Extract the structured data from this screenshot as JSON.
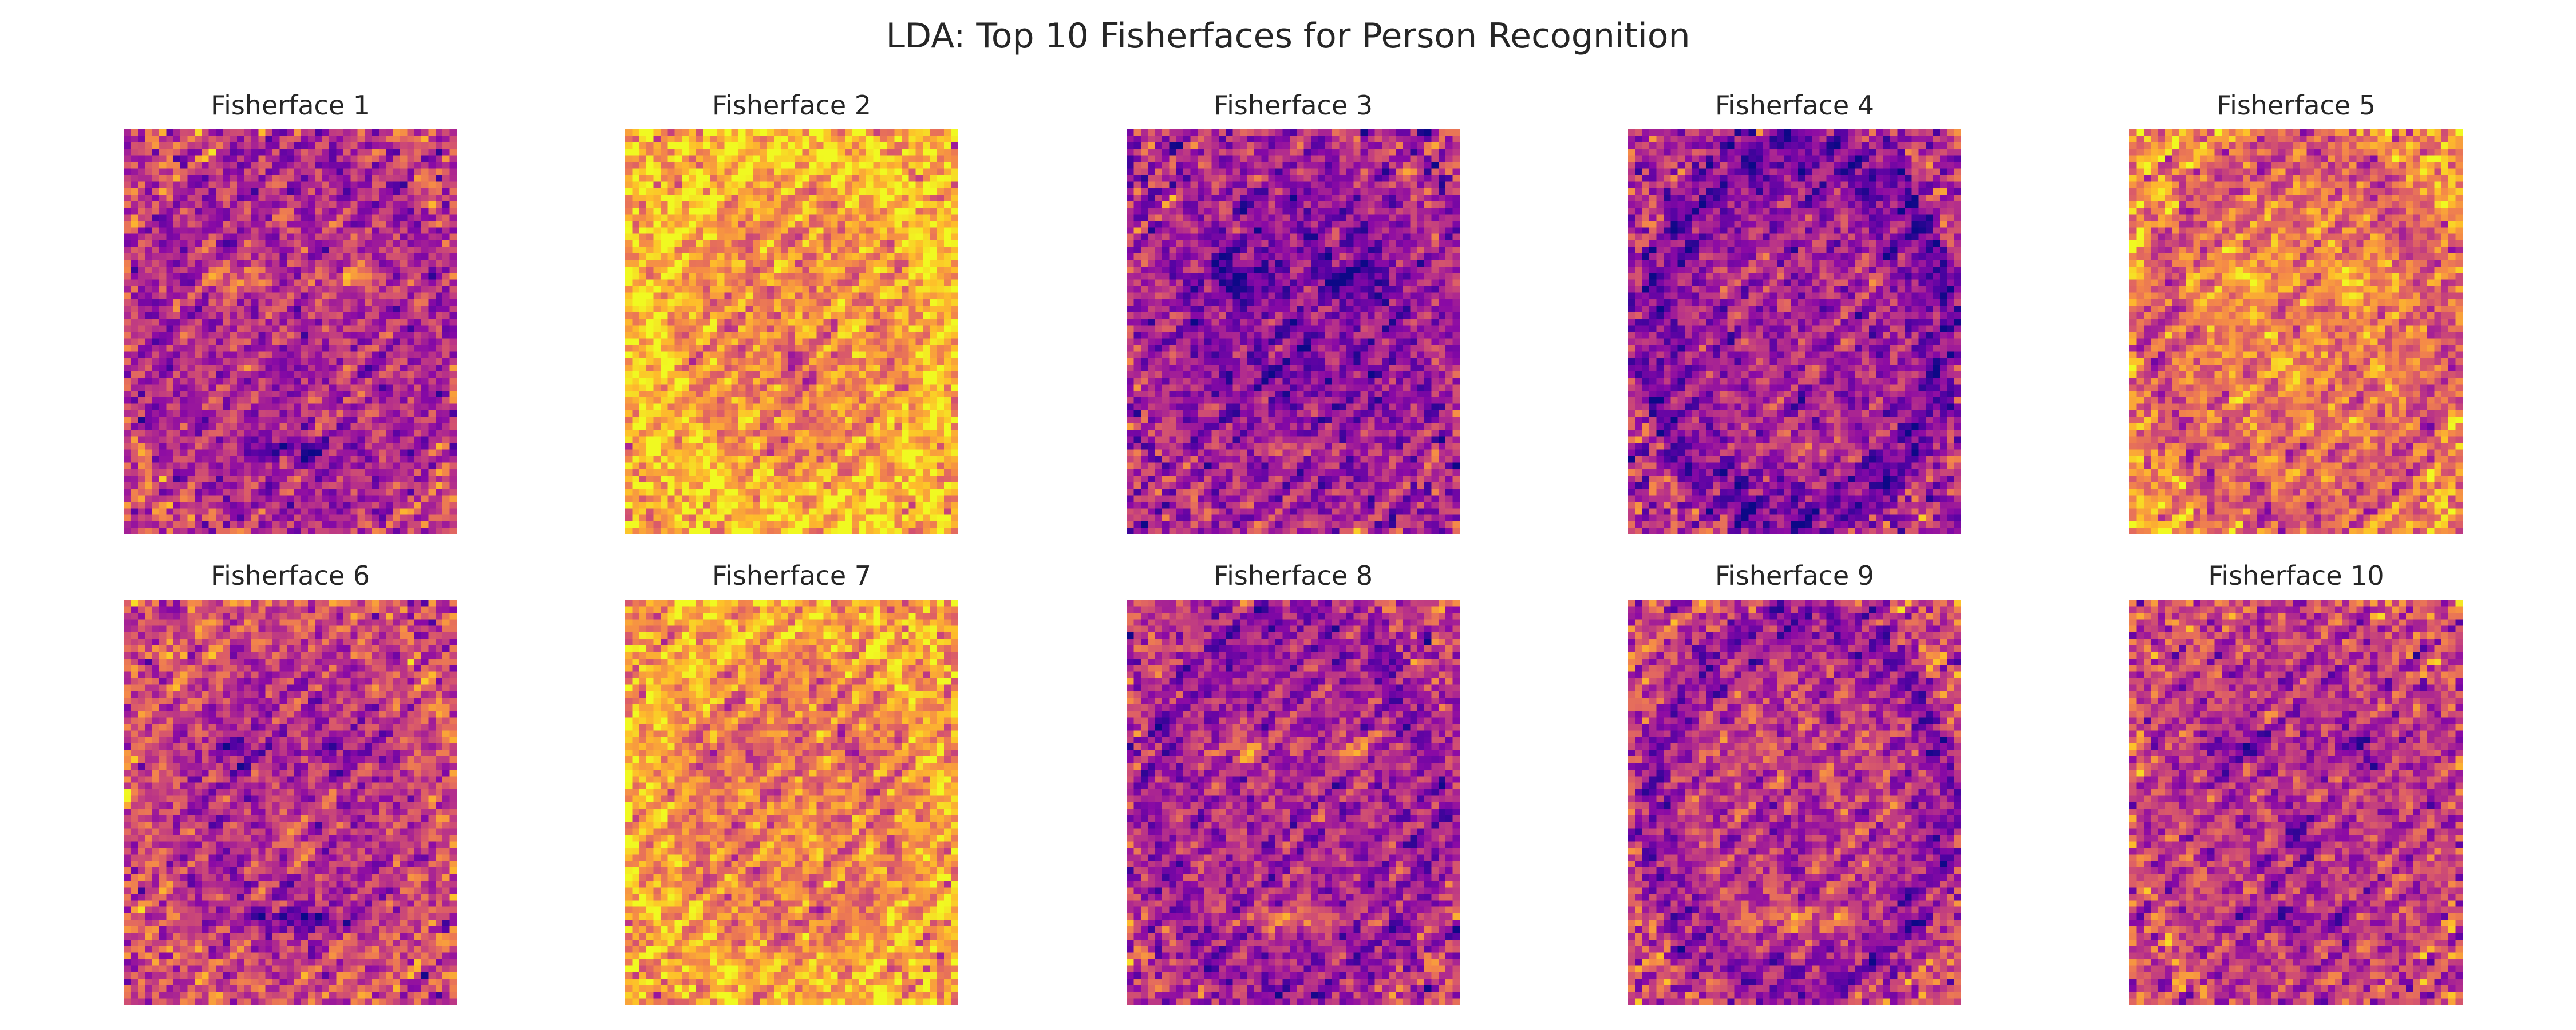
{
  "figure": {
    "title": "LDA: Top 10 Fisherfaces for Person Recognition"
  },
  "colormap": {
    "name": "plasma",
    "stops": [
      "#0d0887",
      "#5302a3",
      "#8b0aa5",
      "#b83289",
      "#db5c68",
      "#f48849",
      "#febd2a",
      "#f0f921"
    ]
  },
  "panels": [
    {
      "title": "Fisherface 1",
      "tone": 0.42
    },
    {
      "title": "Fisherface 2",
      "tone": 0.72
    },
    {
      "title": "Fisherface 3",
      "tone": 0.3
    },
    {
      "title": "Fisherface 4",
      "tone": 0.36
    },
    {
      "title": "Fisherface 5",
      "tone": 0.66
    },
    {
      "title": "Fisherface 6",
      "tone": 0.42
    },
    {
      "title": "Fisherface 7",
      "tone": 0.66
    },
    {
      "title": "Fisherface 8",
      "tone": 0.38
    },
    {
      "title": "Fisherface 9",
      "tone": 0.46
    },
    {
      "title": "Fisherface 10",
      "tone": 0.44
    }
  ]
}
